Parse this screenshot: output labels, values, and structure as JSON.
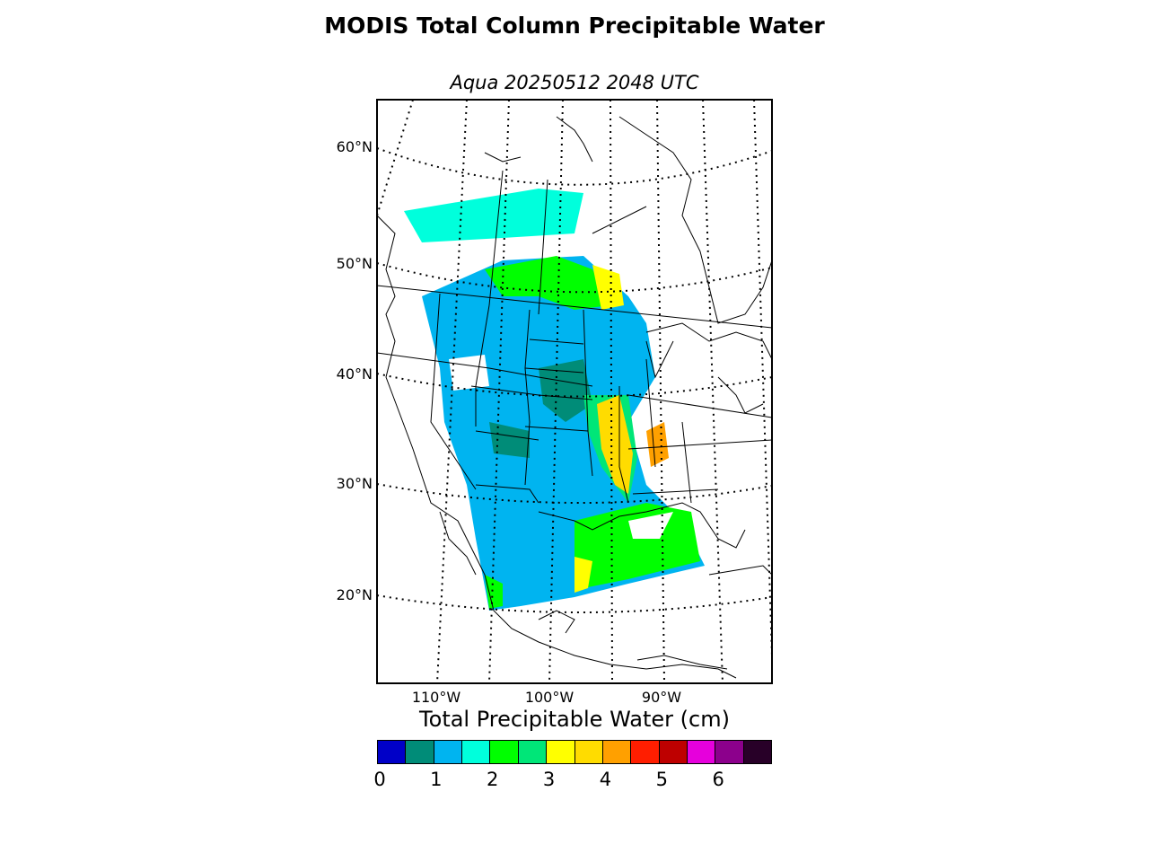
{
  "title": "MODIS Total Column Precipitable Water",
  "subtitle": "Aqua 20250512 2048 UTC",
  "map": {
    "lat_labels": [
      "60°N",
      "50°N",
      "40°N",
      "30°N",
      "20°N"
    ],
    "lon_labels": [
      "110°W",
      "100°W",
      "90°W"
    ]
  },
  "colorbar": {
    "title": "Total Precipitable Water (cm)",
    "colors": [
      "#0000c8",
      "#008c78",
      "#00b4f0",
      "#00ffdc",
      "#00ff00",
      "#00e678",
      "#ffff00",
      "#ffdc00",
      "#ffa000",
      "#ff1e00",
      "#be0000",
      "#e600dc",
      "#8c008c",
      "#280028"
    ],
    "tick_labels": [
      "0",
      "1",
      "2",
      "3",
      "4",
      "5",
      "6"
    ]
  }
}
